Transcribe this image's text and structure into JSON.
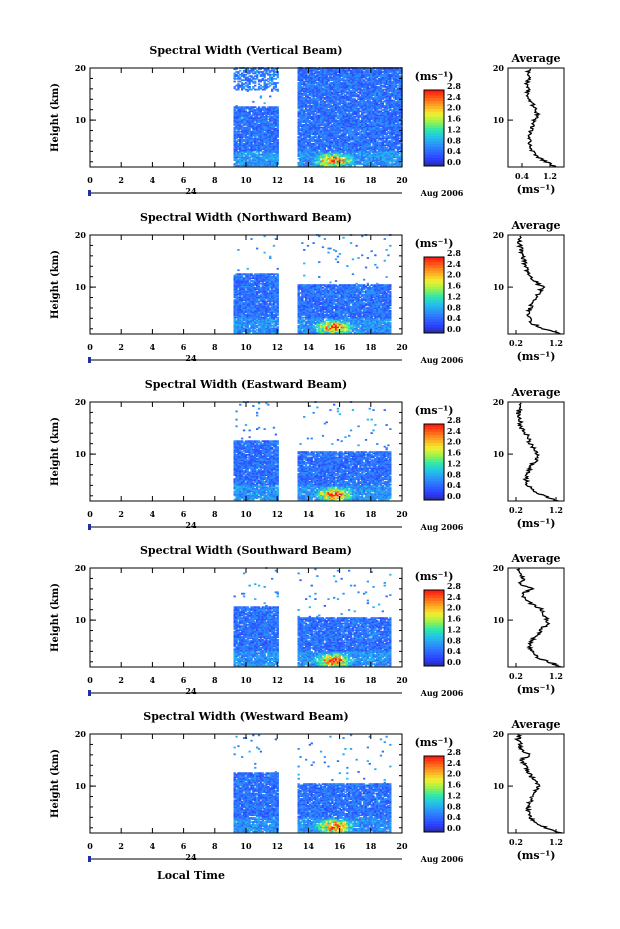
{
  "chart_data": [
    {
      "type": "heatmap",
      "title": "Spectral Width (Vertical Beam)",
      "ylabel": "Height (km)",
      "xlabel": "",
      "xlim": [
        0,
        20
      ],
      "ylim": [
        1,
        20
      ],
      "xticks": [
        "0",
        "2",
        "4",
        "6",
        "8",
        "10",
        "12",
        "14",
        "16",
        "18",
        "20"
      ],
      "yticks": [
        "10",
        "20"
      ],
      "date_day": "24",
      "date_label": "Aug 2006",
      "cbar_unit": "(ms⁻¹)",
      "cbar_ticks": [
        "2.8",
        "2.4",
        "2.0",
        "1.6",
        "1.2",
        "0.8",
        "0.4",
        "0.0"
      ],
      "cbar_range": [
        0,
        2.8
      ],
      "avg_title": "Average",
      "avg_xticks": [
        "0.4",
        "1.2"
      ],
      "avg_xlim": [
        0,
        1.6
      ],
      "avg_xlabel": "(ms⁻¹)",
      "avg_yticks": [
        "10",
        "20"
      ],
      "data_time_ranges": [
        [
          9.2,
          12.0
        ],
        [
          13.3,
          20.0
        ]
      ],
      "avg_profile": [
        [
          1,
          1.35
        ],
        [
          2,
          1.1
        ],
        [
          3,
          0.8
        ],
        [
          4,
          0.7
        ],
        [
          5,
          0.65
        ],
        [
          6,
          0.6
        ],
        [
          7,
          0.6
        ],
        [
          8,
          0.65
        ],
        [
          9,
          0.7
        ],
        [
          10,
          0.75
        ],
        [
          11,
          0.85
        ],
        [
          12,
          0.8
        ],
        [
          13,
          0.7
        ],
        [
          14,
          0.6
        ],
        [
          15,
          0.55
        ],
        [
          16,
          0.6
        ],
        [
          17,
          0.5
        ],
        [
          18,
          0.65
        ],
        [
          19,
          0.55
        ],
        [
          20,
          0.6
        ]
      ]
    },
    {
      "type": "heatmap",
      "title": "Spectral Width (Northward Beam)",
      "ylabel": "Height (km)",
      "xlabel": "",
      "xlim": [
        0,
        20
      ],
      "ylim": [
        1,
        20
      ],
      "xticks": [
        "0",
        "2",
        "4",
        "6",
        "8",
        "10",
        "12",
        "14",
        "16",
        "18",
        "20"
      ],
      "yticks": [
        "10",
        "20"
      ],
      "date_day": "24",
      "date_label": "Aug 2006",
      "cbar_unit": "(ms⁻¹)",
      "cbar_ticks": [
        "2.8",
        "2.4",
        "2.0",
        "1.6",
        "1.2",
        "0.8",
        "0.4",
        "0.0"
      ],
      "cbar_range": [
        0,
        2.8
      ],
      "avg_title": "Average",
      "avg_xticks": [
        "0.2",
        "1.2"
      ],
      "avg_xlim": [
        0,
        1.4
      ],
      "avg_xlabel": "(ms⁻¹)",
      "avg_yticks": [
        "10",
        "20"
      ],
      "data_time_ranges": [
        [
          9.2,
          12.0
        ],
        [
          13.3,
          19.3
        ]
      ],
      "avg_profile": [
        [
          1,
          1.3
        ],
        [
          2,
          0.9
        ],
        [
          3,
          0.6
        ],
        [
          4,
          0.55
        ],
        [
          5,
          0.5
        ],
        [
          6,
          0.55
        ],
        [
          7,
          0.6
        ],
        [
          8,
          0.7
        ],
        [
          9,
          0.8
        ],
        [
          10,
          0.85
        ],
        [
          11,
          0.7
        ],
        [
          12,
          0.55
        ],
        [
          13,
          0.5
        ],
        [
          14,
          0.45
        ],
        [
          15,
          0.4
        ],
        [
          16,
          0.35
        ],
        [
          17,
          0.35
        ],
        [
          18,
          0.3
        ],
        [
          19,
          0.3
        ],
        [
          20,
          0.3
        ]
      ]
    },
    {
      "type": "heatmap",
      "title": "Spectral Width (Eastward Beam)",
      "ylabel": "Height (km)",
      "xlabel": "",
      "xlim": [
        0,
        20
      ],
      "ylim": [
        1,
        20
      ],
      "xticks": [
        "0",
        "2",
        "4",
        "6",
        "8",
        "10",
        "12",
        "14",
        "16",
        "18",
        "20"
      ],
      "yticks": [
        "10",
        "20"
      ],
      "date_day": "24",
      "date_label": "Aug 2006",
      "cbar_unit": "(ms⁻¹)",
      "cbar_ticks": [
        "2.8",
        "2.4",
        "2.0",
        "1.6",
        "1.2",
        "0.8",
        "0.4",
        "0.0"
      ],
      "cbar_range": [
        0,
        2.8
      ],
      "avg_title": "Average",
      "avg_xticks": [
        "0.2",
        "1.2"
      ],
      "avg_xlim": [
        0,
        1.4
      ],
      "avg_xlabel": "(ms⁻¹)",
      "avg_yticks": [
        "10",
        "20"
      ],
      "data_time_ranges": [
        [
          9.2,
          12.0
        ],
        [
          13.3,
          19.3
        ]
      ],
      "avg_profile": [
        [
          1,
          1.25
        ],
        [
          2,
          0.9
        ],
        [
          3,
          0.6
        ],
        [
          4,
          0.5
        ],
        [
          5,
          0.45
        ],
        [
          6,
          0.5
        ],
        [
          7,
          0.55
        ],
        [
          8,
          0.6
        ],
        [
          9,
          0.7
        ],
        [
          10,
          0.75
        ],
        [
          11,
          0.65
        ],
        [
          12,
          0.55
        ],
        [
          13,
          0.5
        ],
        [
          14,
          0.45
        ],
        [
          15,
          0.35
        ],
        [
          16,
          0.3
        ],
        [
          17,
          0.3
        ],
        [
          18,
          0.25
        ],
        [
          19,
          0.3
        ],
        [
          20,
          0.3
        ]
      ]
    },
    {
      "type": "heatmap",
      "title": "Spectral Width (Southward Beam)",
      "ylabel": "Height (km)",
      "xlabel": "",
      "xlim": [
        0,
        20
      ],
      "ylim": [
        1,
        20
      ],
      "xticks": [
        "0",
        "2",
        "4",
        "6",
        "8",
        "10",
        "12",
        "14",
        "16",
        "18",
        "20"
      ],
      "yticks": [
        "10",
        "20"
      ],
      "date_day": "24",
      "date_label": "Aug 2006",
      "cbar_unit": "(ms⁻¹)",
      "cbar_ticks": [
        "2.8",
        "2.4",
        "2.0",
        "1.6",
        "1.2",
        "0.8",
        "0.4",
        "0.0"
      ],
      "cbar_range": [
        0,
        2.8
      ],
      "avg_title": "Average",
      "avg_xticks": [
        "0.2",
        "1.2"
      ],
      "avg_xlim": [
        0,
        1.4
      ],
      "avg_xlabel": "(ms⁻¹)",
      "avg_yticks": [
        "10",
        "20"
      ],
      "data_time_ranges": [
        [
          9.2,
          12.0
        ],
        [
          13.3,
          19.3
        ]
      ],
      "avg_profile": [
        [
          1,
          1.35
        ],
        [
          2,
          1.0
        ],
        [
          3,
          0.7
        ],
        [
          4,
          0.6
        ],
        [
          5,
          0.55
        ],
        [
          6,
          0.6
        ],
        [
          7,
          0.7
        ],
        [
          8,
          0.8
        ],
        [
          9,
          0.95
        ],
        [
          10,
          1.0
        ],
        [
          11,
          0.9
        ],
        [
          12,
          0.85
        ],
        [
          13,
          0.6
        ],
        [
          14,
          0.45
        ],
        [
          15,
          0.35
        ],
        [
          16,
          0.6
        ],
        [
          17,
          0.3
        ],
        [
          18,
          0.4
        ],
        [
          19,
          0.25
        ],
        [
          20,
          0.3
        ]
      ]
    },
    {
      "type": "heatmap",
      "title": "Spectral Width (Westward Beam)",
      "ylabel": "Height (km)",
      "xlabel": "Local Time",
      "xlim": [
        0,
        20
      ],
      "ylim": [
        1,
        20
      ],
      "xticks": [
        "0",
        "2",
        "4",
        "6",
        "8",
        "10",
        "12",
        "14",
        "16",
        "18",
        "20"
      ],
      "yticks": [
        "10",
        "20"
      ],
      "date_day": "24",
      "date_label": "Aug 2006",
      "cbar_unit": "(ms⁻¹)",
      "cbar_ticks": [
        "2.8",
        "2.4",
        "2.0",
        "1.6",
        "1.2",
        "0.8",
        "0.4",
        "0.0"
      ],
      "cbar_range": [
        0,
        2.8
      ],
      "avg_title": "Average",
      "avg_xticks": [
        "0.2",
        "1.2"
      ],
      "avg_xlim": [
        0,
        1.4
      ],
      "avg_xlabel": "(ms⁻¹)",
      "avg_yticks": [
        "10",
        "20"
      ],
      "data_time_ranges": [
        [
          9.2,
          12.0
        ],
        [
          13.3,
          19.3
        ]
      ],
      "avg_profile": [
        [
          1,
          1.3
        ],
        [
          2,
          0.95
        ],
        [
          3,
          0.65
        ],
        [
          4,
          0.55
        ],
        [
          5,
          0.5
        ],
        [
          6,
          0.5
        ],
        [
          7,
          0.55
        ],
        [
          8,
          0.6
        ],
        [
          9,
          0.7
        ],
        [
          10,
          0.75
        ],
        [
          11,
          0.7
        ],
        [
          12,
          0.55
        ],
        [
          13,
          0.5
        ],
        [
          14,
          0.45
        ],
        [
          15,
          0.3
        ],
        [
          16,
          0.55
        ],
        [
          17,
          0.3
        ],
        [
          18,
          0.3
        ],
        [
          19,
          0.25
        ],
        [
          20,
          0.3
        ]
      ]
    }
  ],
  "colors": {
    "bg": "#ffffff",
    "axis": "#000000",
    "date_marker": "#2030a0"
  }
}
